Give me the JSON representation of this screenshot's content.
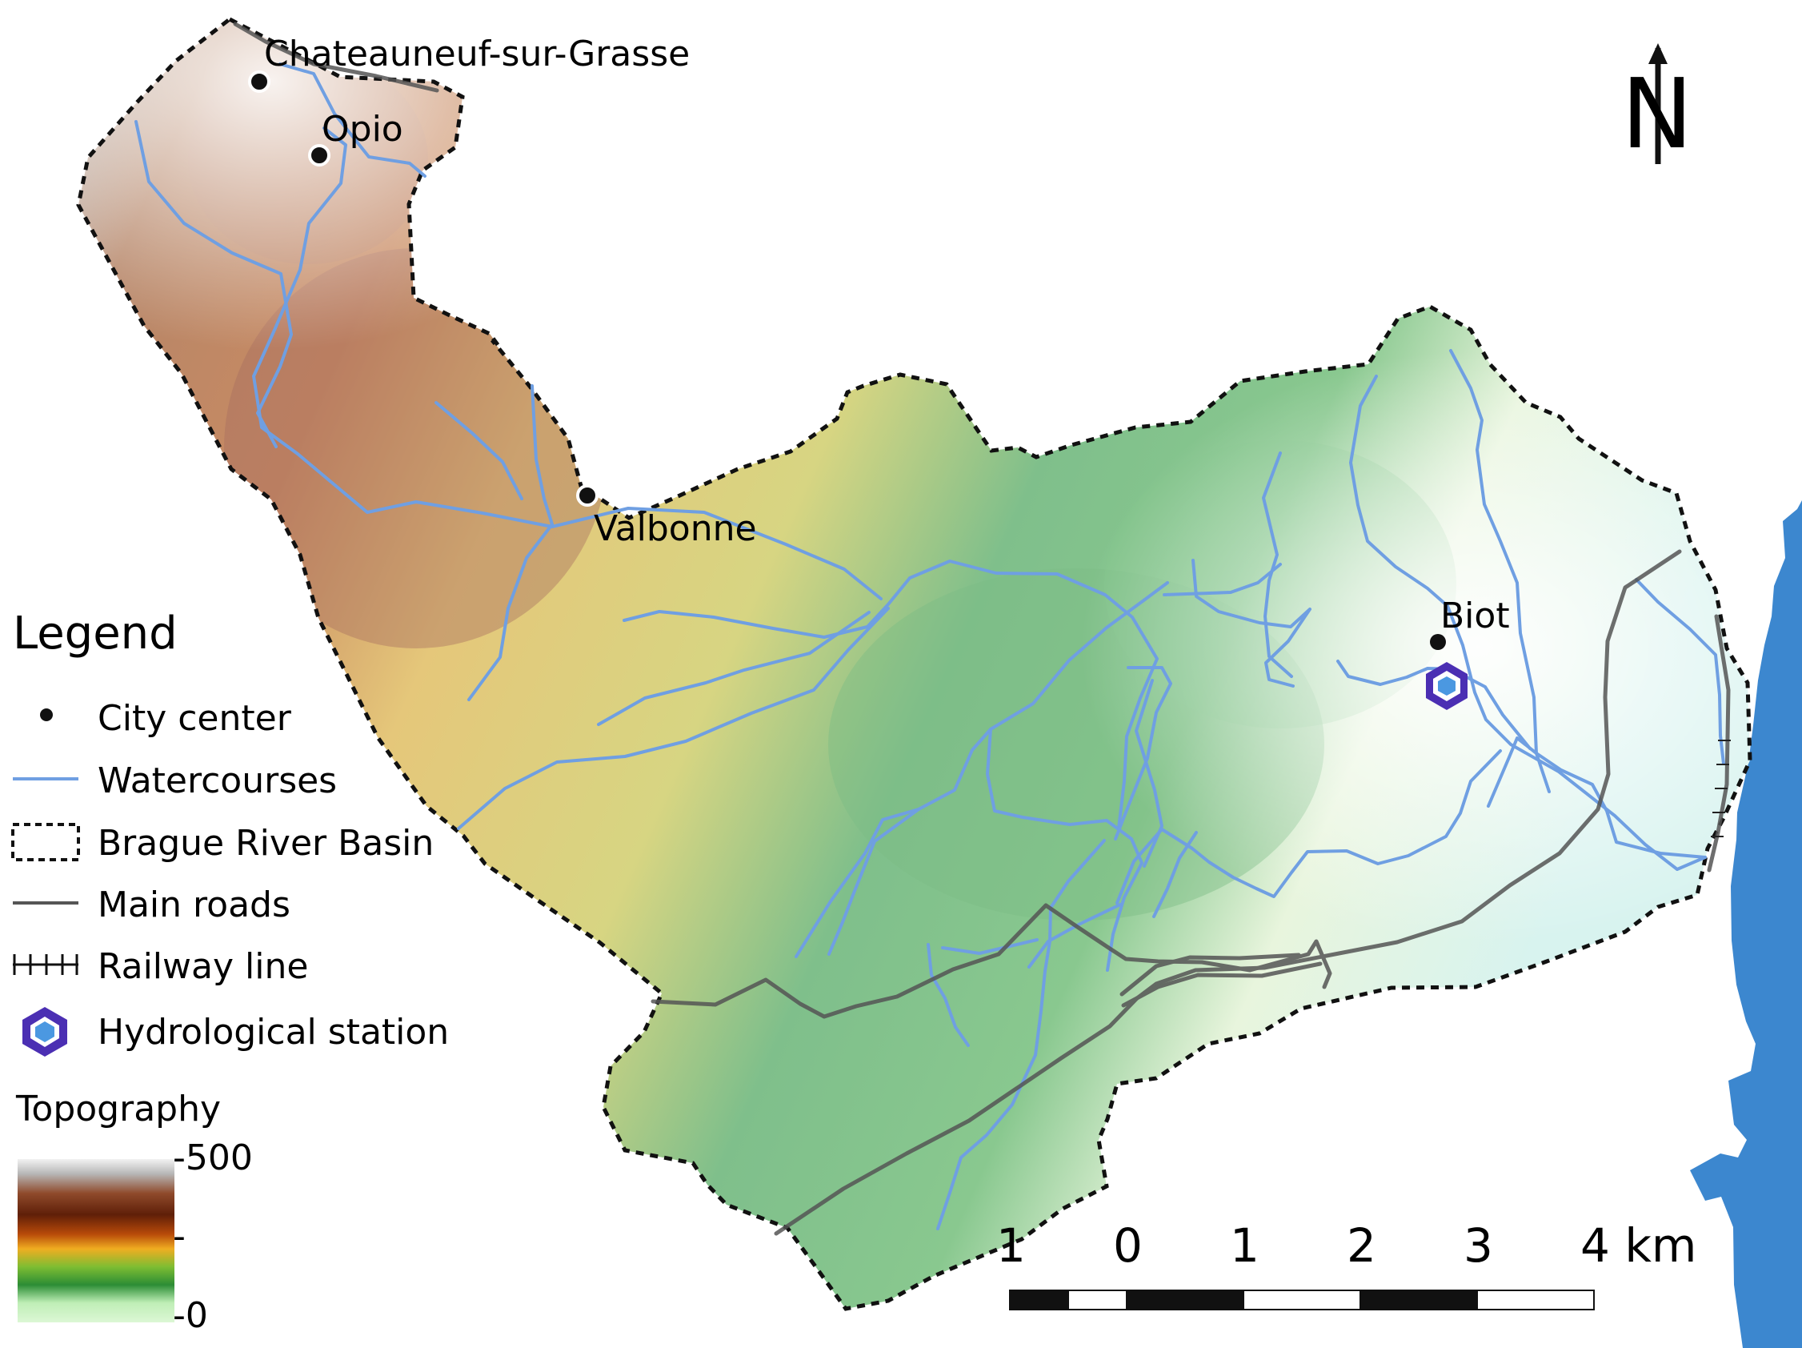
{
  "map": {
    "cities": [
      {
        "id": "chateauneuf",
        "name": "Chateauneuf-sur-Grasse"
      },
      {
        "id": "opio",
        "name": "Opio"
      },
      {
        "id": "valbonne",
        "name": "Valbonne"
      },
      {
        "id": "biot",
        "name": "Biot"
      }
    ],
    "north_arrow": {
      "letter": "N"
    },
    "scale_bar": {
      "labels": [
        "1",
        "0",
        "1",
        "2",
        "3",
        "4 km"
      ]
    },
    "colors": {
      "basin_high": "#c9c9c9",
      "basin_mid_high": "#b07a62",
      "basin_mid": "#e9cc7f",
      "basin_low_mid": "#7fbf8b",
      "basin_low": "#f4fbe9",
      "sea": "#3c87cf",
      "watercourse": "#6f9fe2",
      "roads": "#555555",
      "hydro_station_outer": "#4b2fb3",
      "hydro_station_inner": "#4b98e1"
    }
  },
  "legend": {
    "title": "Legend",
    "items": [
      {
        "id": "city-center",
        "label": "City center"
      },
      {
        "id": "watercourses",
        "label": "Watercourses"
      },
      {
        "id": "basin",
        "label": "Brague River Basin"
      },
      {
        "id": "main-roads",
        "label": "Main roads"
      },
      {
        "id": "railway",
        "label": "Railway line"
      },
      {
        "id": "hydro-station",
        "label": "Hydrological station"
      }
    ],
    "topography": {
      "title": "Topography",
      "ticks": [
        "-500",
        "-",
        "-0"
      ]
    }
  }
}
